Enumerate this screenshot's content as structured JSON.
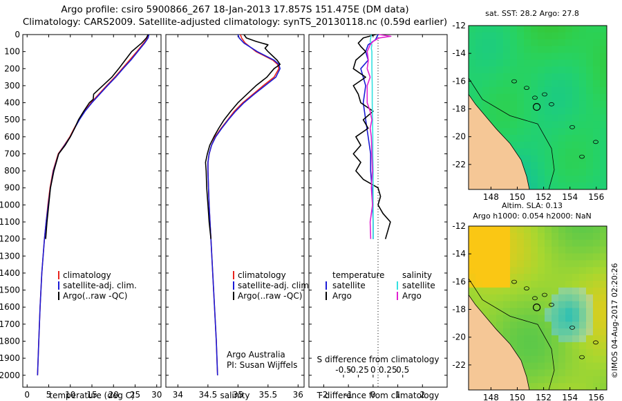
{
  "title_line1": "Argo profile: csiro 5900866_267 18-Jan-2013 17.857S 151.475E (DM data)",
  "title_line2": "Climatology: CARS2009. Satellite-adjusted climatology: synTS_20130118.nc (0.59d earlier)",
  "colors": {
    "climatology": "#e8231c",
    "satellite": "#1a1ad6",
    "argo": "#000000",
    "satellite_salinity": "#33e0e0",
    "argo_salinity": "#e020d0",
    "land": "#f5c796"
  },
  "chart_data": [
    {
      "type": "line",
      "name": "temperature-profile",
      "xlabel": "temperature (deg C)",
      "ylabel": "",
      "xlim": [
        -1,
        31
      ],
      "ylim": [
        2070,
        0
      ],
      "xticks": [
        "0",
        "5",
        "10",
        "15",
        "20",
        "25",
        "30"
      ],
      "yticks": [
        "0",
        "100",
        "200",
        "300",
        "400",
        "500",
        "600",
        "700",
        "800",
        "900",
        "1000",
        "1100",
        "1200",
        "1300",
        "1400",
        "1500",
        "1600",
        "1700",
        "1800",
        "1900",
        "2000"
      ],
      "legend": [
        "climatology",
        "satellite-adj. clim.",
        "Argo(..raw -QC)"
      ],
      "series": [
        {
          "name": "climatology",
          "depth": [
            0,
            20,
            50,
            100,
            150,
            200,
            250,
            300,
            350,
            400,
            450,
            500,
            550,
            600,
            650,
            700,
            800,
            900,
            1000,
            1100,
            1200,
            1400,
            1600,
            1800,
            2000
          ],
          "values": [
            28.0,
            27.9,
            27.0,
            25.4,
            23.7,
            22.0,
            20.3,
            18.4,
            16.6,
            14.8,
            13.3,
            12.0,
            10.9,
            9.9,
            8.6,
            7.2,
            6.0,
            5.3,
            4.8,
            4.4,
            4.0,
            3.4,
            3.0,
            2.7,
            2.4
          ]
        },
        {
          "name": "satellite-adj. clim.",
          "depth": [
            0,
            20,
            50,
            100,
            150,
            200,
            250,
            300,
            350,
            400,
            450,
            500,
            550,
            600,
            650,
            700,
            800,
            900,
            1000,
            1100,
            1200,
            1400,
            1600,
            1800,
            2000
          ],
          "values": [
            28.2,
            28.0,
            27.2,
            25.6,
            24.0,
            22.2,
            20.5,
            18.6,
            16.8,
            15.0,
            13.4,
            12.1,
            11.0,
            10.0,
            8.7,
            7.3,
            6.1,
            5.4,
            4.9,
            4.4,
            4.0,
            3.4,
            3.0,
            2.7,
            2.4
          ]
        },
        {
          "name": "Argo(..raw -QC)",
          "depth": [
            0,
            20,
            50,
            100,
            150,
            200,
            250,
            300,
            350,
            380,
            400,
            450,
            500,
            550,
            600,
            650,
            700,
            800,
            900,
            1000,
            1100,
            1200
          ],
          "values": [
            28.0,
            27.6,
            26.5,
            24.2,
            22.7,
            21.2,
            19.6,
            17.5,
            15.4,
            15.3,
            14.4,
            13.1,
            11.9,
            11.0,
            10.0,
            8.8,
            7.3,
            6.2,
            5.4,
            5.0,
            4.6,
            4.3
          ]
        }
      ]
    },
    {
      "type": "line",
      "name": "salinity-profile",
      "xlabel": "salinity",
      "xlim": [
        33.8,
        36.1
      ],
      "ylim": [
        2070,
        0
      ],
      "xticks": [
        "34",
        "34.5",
        "35",
        "35.5",
        "36"
      ],
      "legend": [
        "climatology",
        "satellite-adj. clim.",
        "Argo(..raw -QC)"
      ],
      "annotation": [
        "Argo Australia",
        "PI: Susan Wijffels"
      ],
      "series": [
        {
          "name": "climatology",
          "depth": [
            0,
            20,
            50,
            100,
            150,
            175,
            200,
            250,
            300,
            350,
            400,
            450,
            500,
            550,
            600,
            650,
            700,
            750,
            800,
            900,
            1000,
            1200,
            1400,
            1600,
            1800,
            2000
          ],
          "values": [
            35.04,
            35.06,
            35.12,
            35.3,
            35.58,
            35.66,
            35.68,
            35.6,
            35.42,
            35.25,
            35.08,
            34.94,
            34.83,
            34.72,
            34.62,
            34.56,
            34.52,
            34.5,
            34.5,
            34.51,
            34.52,
            34.55,
            34.58,
            34.61,
            34.64,
            34.66
          ]
        },
        {
          "name": "satellite-adj. clim.",
          "depth": [
            0,
            20,
            50,
            100,
            150,
            175,
            200,
            250,
            300,
            350,
            400,
            450,
            500,
            550,
            600,
            650,
            700,
            750,
            800,
            900,
            1000,
            1200,
            1400,
            1600,
            1800,
            2000
          ],
          "values": [
            35.0,
            35.02,
            35.1,
            35.32,
            35.6,
            35.68,
            35.7,
            35.63,
            35.45,
            35.27,
            35.1,
            34.96,
            34.84,
            34.73,
            34.63,
            34.56,
            34.52,
            34.5,
            34.5,
            34.51,
            34.52,
            34.55,
            34.58,
            34.61,
            34.64,
            34.66
          ]
        },
        {
          "name": "Argo(..raw -QC)",
          "depth": [
            0,
            20,
            40,
            60,
            80,
            100,
            150,
            175,
            200,
            250,
            300,
            350,
            400,
            450,
            500,
            550,
            600,
            650,
            700,
            750,
            800,
            900,
            1000,
            1100,
            1200
          ],
          "values": [
            35.1,
            35.14,
            35.3,
            35.5,
            35.45,
            35.5,
            35.65,
            35.7,
            35.6,
            35.48,
            35.3,
            35.15,
            35.0,
            34.88,
            34.77,
            34.68,
            34.6,
            34.53,
            34.49,
            34.46,
            34.47,
            34.48,
            34.5,
            34.52,
            34.55
          ]
        }
      ]
    },
    {
      "type": "line",
      "name": "difference-profile",
      "xlabel": "T difference from climatology",
      "xlabel_top": "S difference from climatology",
      "xlim": [
        -2.6,
        3.0
      ],
      "ylim": [
        2070,
        0
      ],
      "xticks": [
        "-2",
        "-1",
        "0",
        "1",
        "2"
      ],
      "xticks_top": [
        "-0.5",
        "-0.25",
        "0",
        "0.25",
        "0.5"
      ],
      "legend_temperature": [
        "temperature",
        "satellite",
        "Argo"
      ],
      "legend_salinity": [
        "salinity",
        "satellite",
        "Argo"
      ],
      "series": [
        {
          "name": "temperature satellite",
          "depth": [
            0,
            30,
            60,
            100,
            150,
            200,
            300,
            400,
            500,
            600,
            700,
            800,
            900,
            1000,
            1100,
            1200
          ],
          "values": [
            0.2,
            0.1,
            -0.2,
            -0.3,
            -0.2,
            -0.5,
            -0.3,
            -0.4,
            -0.3,
            -0.2,
            -0.1,
            -0.1,
            -0.05,
            -0.02,
            0.0,
            0.0
          ]
        },
        {
          "name": "temperature Argo",
          "depth": [
            0,
            20,
            50,
            70,
            100,
            150,
            200,
            250,
            300,
            350,
            400,
            450,
            500,
            550,
            600,
            650,
            700,
            750,
            800,
            850,
            900,
            950,
            1000,
            1050,
            1100,
            1150,
            1200
          ],
          "values": [
            0.1,
            -0.4,
            -0.6,
            -0.5,
            -0.3,
            -0.7,
            -0.8,
            -0.3,
            -0.8,
            -0.6,
            -0.5,
            0.0,
            -0.4,
            -0.2,
            -0.7,
            -0.5,
            -0.8,
            -0.5,
            -0.7,
            -0.4,
            0.2,
            0.3,
            0.2,
            0.4,
            0.7,
            0.6,
            0.5
          ]
        },
        {
          "name": "salinity satellite",
          "depth": [
            0,
            20,
            40,
            60,
            80,
            100,
            150,
            200,
            300,
            400,
            500,
            600,
            700,
            800,
            900,
            1000,
            1100,
            1200
          ],
          "values": [
            -0.03,
            -0.04,
            -0.05,
            -0.02,
            -0.03,
            -0.02,
            -0.02,
            -0.02,
            -0.015,
            -0.015,
            -0.01,
            -0.005,
            -0.005,
            0.0,
            0.0,
            0.0,
            0.0,
            0.0
          ]
        },
        {
          "name": "salinity Argo",
          "depth": [
            0,
            10,
            20,
            40,
            60,
            100,
            150,
            200,
            250,
            300,
            350,
            400,
            450,
            500,
            550,
            600,
            700,
            800,
            900,
            1000,
            1100,
            1200
          ],
          "values": [
            0.1,
            0.3,
            0.1,
            0.0,
            -0.05,
            -0.1,
            -0.08,
            -0.1,
            -0.05,
            -0.1,
            -0.1,
            -0.1,
            -0.05,
            -0.02,
            -0.05,
            -0.03,
            -0.02,
            -0.01,
            -0.03,
            -0.01,
            -0.05,
            -0.04
          ]
        }
      ]
    },
    {
      "type": "heatmap",
      "name": "sst-map",
      "title": "sat. SST: 28.2  Argo: 27.8",
      "xticks": [
        "148",
        "150",
        "152",
        "154",
        "156"
      ],
      "yticks": [
        "-12",
        "-14",
        "-16",
        "-18",
        "-20",
        "-22"
      ],
      "xlim": [
        146.3,
        156.8
      ],
      "ylim": [
        -23.8,
        -12
      ],
      "argo_position": [
        151.475,
        -17.857
      ]
    },
    {
      "type": "heatmap",
      "name": "sla-map",
      "title_line1": "Altim. SLA: 0.13",
      "title_line2": "Argo h1000: 0.054  h2000: NaN",
      "xticks": [
        "148",
        "150",
        "152",
        "154",
        "156"
      ],
      "yticks": [
        "-12",
        "-14",
        "-16",
        "-18",
        "-20",
        "-22"
      ],
      "xlim": [
        146.3,
        156.8
      ],
      "ylim": [
        -23.8,
        -12
      ],
      "argo_position": [
        151.475,
        -17.857
      ]
    }
  ],
  "side_stamp": "©IMOS 04-Aug-2017 02:20:26"
}
